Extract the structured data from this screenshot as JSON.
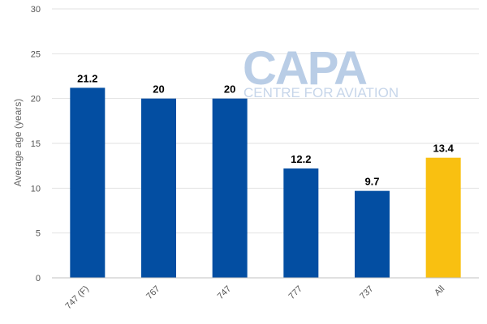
{
  "chart_data": {
    "type": "bar",
    "categories": [
      "747 (F)",
      "767",
      "747",
      "777",
      "737",
      "All"
    ],
    "values": [
      21.2,
      20,
      20,
      12.2,
      9.7,
      13.4
    ],
    "data_labels": [
      "21.2",
      "20",
      "20",
      "12.2",
      "9.7",
      "13.4"
    ],
    "bar_colors": [
      "#034ea2",
      "#034ea2",
      "#034ea2",
      "#034ea2",
      "#034ea2",
      "#f9c011"
    ],
    "title": "",
    "xlabel": "",
    "ylabel": "Average age (years)",
    "ylim": [
      0,
      30
    ],
    "yticks": [
      "0",
      "5",
      "10",
      "15",
      "20",
      "25",
      "30"
    ],
    "grid": true,
    "legend": "none"
  },
  "watermark": {
    "logo_text": "CAPA",
    "tagline": "CENTRE FOR AVIATION"
  }
}
